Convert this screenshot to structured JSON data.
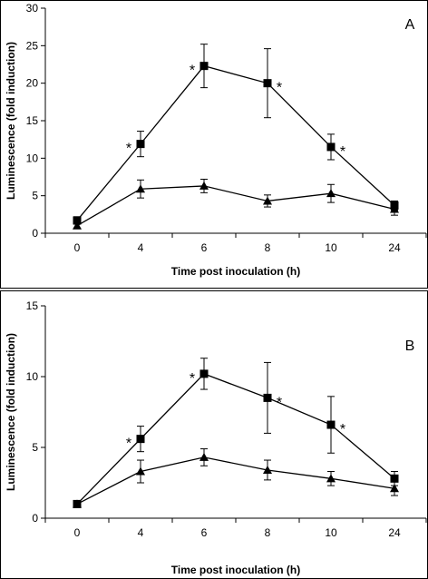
{
  "chart_data": [
    {
      "type": "line",
      "panel_label": "A",
      "xlabel": "Time post inoculation (h)",
      "ylabel": "Luminescence (fold induction)",
      "categories": [
        "0",
        "4",
        "6",
        "8",
        "10",
        "24"
      ],
      "ylim": [
        0,
        30
      ],
      "yticks": [
        0,
        5,
        10,
        15,
        20,
        25,
        30
      ],
      "grid": false,
      "series": [
        {
          "marker": "square",
          "values": [
            1.7,
            11.9,
            22.3,
            20.0,
            11.5,
            3.7
          ],
          "errors": [
            0.5,
            1.7,
            2.9,
            4.6,
            1.7,
            0.6
          ],
          "significant": [
            false,
            true,
            true,
            true,
            true,
            false
          ]
        },
        {
          "marker": "triangle",
          "values": [
            1.0,
            5.9,
            6.3,
            4.3,
            5.3,
            3.2
          ],
          "errors": [
            0.4,
            1.2,
            0.9,
            0.8,
            1.2,
            0.8
          ],
          "significant": [
            false,
            false,
            false,
            false,
            false,
            false
          ]
        }
      ],
      "annotation_text": "*"
    },
    {
      "type": "line",
      "panel_label": "B",
      "xlabel": "Time post inoculation (h)",
      "ylabel": "Luminescence (fold induction)",
      "categories": [
        "0",
        "4",
        "6",
        "8",
        "10",
        "24"
      ],
      "ylim": [
        0,
        15
      ],
      "yticks": [
        0,
        5,
        10,
        15
      ],
      "grid": false,
      "series": [
        {
          "marker": "square",
          "values": [
            1.0,
            5.6,
            10.2,
            8.5,
            6.6,
            2.8
          ],
          "errors": [
            0.15,
            0.9,
            1.1,
            2.5,
            2.0,
            0.5
          ],
          "significant": [
            false,
            true,
            true,
            true,
            true,
            false
          ]
        },
        {
          "marker": "triangle",
          "values": [
            1.0,
            3.3,
            4.3,
            3.4,
            2.8,
            2.1
          ],
          "errors": [
            0.15,
            0.8,
            0.6,
            0.7,
            0.5,
            0.5
          ],
          "significant": [
            false,
            false,
            false,
            false,
            false,
            false
          ]
        }
      ],
      "annotation_text": "*"
    }
  ]
}
